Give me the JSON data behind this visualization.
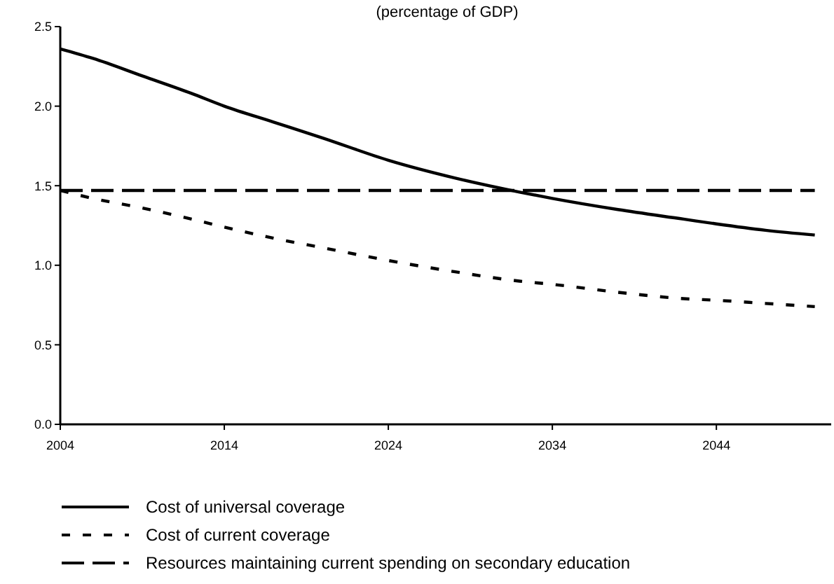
{
  "chart_data": {
    "type": "line",
    "title": "(percentage of GDP)",
    "x": [
      2004,
      2006,
      2009,
      2012,
      2014,
      2017,
      2020,
      2024,
      2028,
      2032,
      2034,
      2038,
      2042,
      2044,
      2047,
      2050
    ],
    "xlim": [
      2004,
      2051
    ],
    "xticks": [
      2004,
      2014,
      2024,
      2034,
      2044
    ],
    "ylim": [
      0,
      2.5
    ],
    "yticks": [
      {
        "value": 0,
        "label": "0.0"
      },
      0.5,
      {
        "value": 1,
        "label": "1.0"
      },
      1.5,
      {
        "value": 2,
        "label": "2.0"
      },
      2.5
    ],
    "series": [
      {
        "name": "Cost of universal coverage",
        "color": "#000000",
        "line_style": "solid",
        "values": [
          2.36,
          2.3,
          2.19,
          2.08,
          2.0,
          1.9,
          1.8,
          1.66,
          1.55,
          1.46,
          1.42,
          1.35,
          1.29,
          1.26,
          1.22,
          1.19
        ]
      },
      {
        "name": "Cost of current coverage",
        "color": "#000000",
        "line_style": "dotted",
        "values": [
          1.47,
          1.42,
          1.36,
          1.29,
          1.24,
          1.17,
          1.11,
          1.03,
          0.96,
          0.9,
          0.88,
          0.83,
          0.79,
          0.78,
          0.76,
          0.74
        ]
      },
      {
        "name": "Resources maintaining current spending on secondary education",
        "color": "#000000",
        "line_style": "dashed",
        "values": [
          1.47,
          1.47,
          1.47,
          1.47,
          1.47,
          1.47,
          1.47,
          1.47,
          1.47,
          1.47,
          1.47,
          1.47,
          1.47,
          1.47,
          1.47,
          1.47
        ]
      }
    ],
    "legend": "bottom",
    "grid": false
  }
}
